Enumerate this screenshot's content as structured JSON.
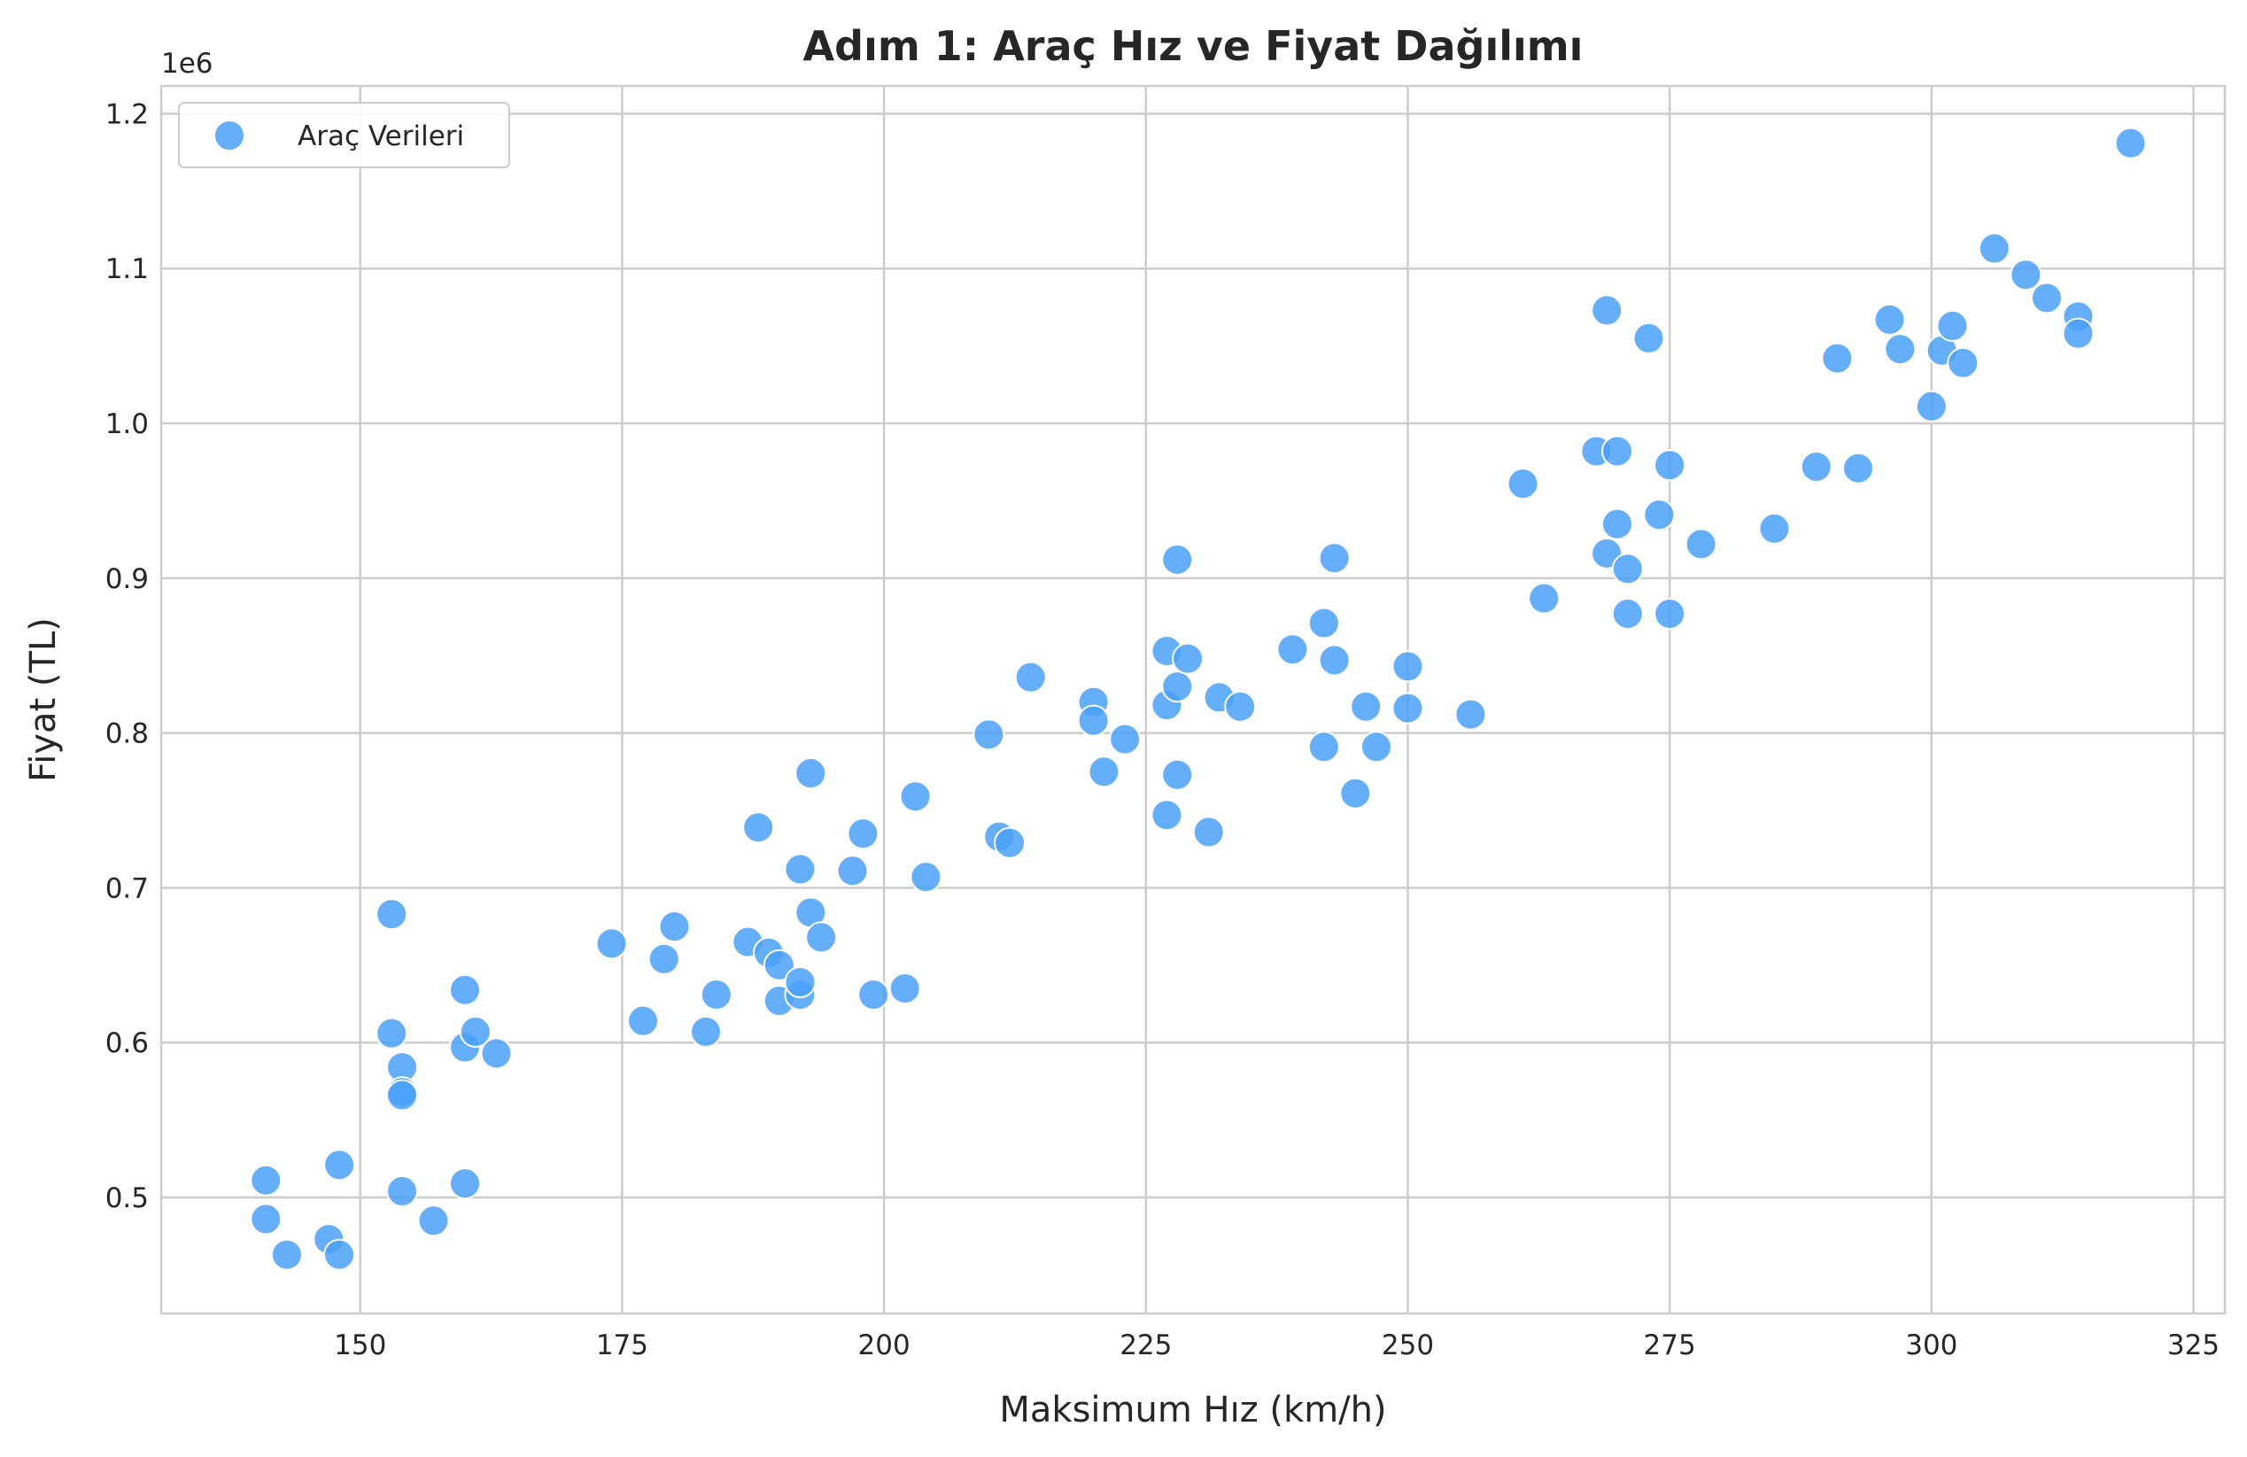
{
  "chart_data": {
    "type": "scatter",
    "title": "Adım 1: Araç Hız ve Fiyat Dağılımı",
    "xlabel": "Maksimum Hız (km/h)",
    "ylabel": "Fiyat (TL)",
    "y_offset_label": "1e6",
    "xlim": [
      131,
      328
    ],
    "ylim": [
      0.425,
      1.218
    ],
    "x_ticks": [
      150,
      175,
      200,
      225,
      250,
      275,
      300,
      325
    ],
    "y_ticks": [
      0.5,
      0.6,
      0.7,
      0.8,
      0.9,
      1.0,
      1.1,
      1.2
    ],
    "x_tick_labels": [
      "150",
      "175",
      "200",
      "225",
      "250",
      "275",
      "300",
      "325"
    ],
    "y_tick_labels": [
      "0.5",
      "0.6",
      "0.7",
      "0.8",
      "0.9",
      "1.0",
      "1.1",
      "1.2"
    ],
    "grid": true,
    "legend_position": "top-left",
    "colors": {
      "series": "#4aa0f8",
      "grid": "#cccccc",
      "text": "#262626"
    },
    "series": [
      {
        "name": "Araç Verileri",
        "points": [
          [
            141,
            0.511
          ],
          [
            141,
            0.486
          ],
          [
            143,
            0.463
          ],
          [
            147,
            0.473
          ],
          [
            148,
            0.463
          ],
          [
            148,
            0.521
          ],
          [
            153,
            0.683
          ],
          [
            153,
            0.606
          ],
          [
            154,
            0.584
          ],
          [
            154,
            0.568
          ],
          [
            154,
            0.566
          ],
          [
            154,
            0.504
          ],
          [
            157,
            0.485
          ],
          [
            160,
            0.634
          ],
          [
            160,
            0.597
          ],
          [
            160,
            0.509
          ],
          [
            161,
            0.607
          ],
          [
            163,
            0.593
          ],
          [
            174,
            0.664
          ],
          [
            177,
            0.614
          ],
          [
            179,
            0.654
          ],
          [
            180,
            0.675
          ],
          [
            183,
            0.607
          ],
          [
            184,
            0.631
          ],
          [
            187,
            0.665
          ],
          [
            188,
            0.739
          ],
          [
            189,
            0.658
          ],
          [
            190,
            0.65
          ],
          [
            190,
            0.627
          ],
          [
            192,
            0.712
          ],
          [
            192,
            0.631
          ],
          [
            192,
            0.639
          ],
          [
            193,
            0.774
          ],
          [
            193,
            0.684
          ],
          [
            194,
            0.668
          ],
          [
            197,
            0.711
          ],
          [
            198,
            0.735
          ],
          [
            199,
            0.631
          ],
          [
            202,
            0.635
          ],
          [
            203,
            0.759
          ],
          [
            204,
            0.707
          ],
          [
            210,
            0.799
          ],
          [
            211,
            0.733
          ],
          [
            212,
            0.729
          ],
          [
            214,
            0.836
          ],
          [
            220,
            0.82
          ],
          [
            220,
            0.808
          ],
          [
            221,
            0.775
          ],
          [
            223,
            0.796
          ],
          [
            227,
            0.853
          ],
          [
            227,
            0.818
          ],
          [
            227,
            0.747
          ],
          [
            228,
            0.912
          ],
          [
            228,
            0.83
          ],
          [
            228,
            0.773
          ],
          [
            229,
            0.848
          ],
          [
            231,
            0.736
          ],
          [
            232,
            0.823
          ],
          [
            234,
            0.817
          ],
          [
            239,
            0.854
          ],
          [
            242,
            0.871
          ],
          [
            242,
            0.791
          ],
          [
            243,
            0.913
          ],
          [
            243,
            0.847
          ],
          [
            245,
            0.761
          ],
          [
            246,
            0.817
          ],
          [
            247,
            0.791
          ],
          [
            250,
            0.843
          ],
          [
            250,
            0.816
          ],
          [
            256,
            0.812
          ],
          [
            261,
            0.961
          ],
          [
            263,
            0.887
          ],
          [
            268,
            0.982
          ],
          [
            269,
            1.073
          ],
          [
            269,
            0.916
          ],
          [
            270,
            0.982
          ],
          [
            270,
            0.935
          ],
          [
            271,
            0.906
          ],
          [
            271,
            0.877
          ],
          [
            273,
            1.055
          ],
          [
            274,
            0.941
          ],
          [
            275,
            0.973
          ],
          [
            275,
            0.877
          ],
          [
            278,
            0.922
          ],
          [
            285,
            0.932
          ],
          [
            289,
            0.972
          ],
          [
            291,
            1.042
          ],
          [
            293,
            0.971
          ],
          [
            296,
            1.067
          ],
          [
            297,
            1.048
          ],
          [
            300,
            1.011
          ],
          [
            301,
            1.047
          ],
          [
            302,
            1.063
          ],
          [
            303,
            1.039
          ],
          [
            306,
            1.113
          ],
          [
            309,
            1.096
          ],
          [
            311,
            1.081
          ],
          [
            314,
            1.069
          ],
          [
            314,
            1.058
          ],
          [
            319,
            1.181
          ]
        ]
      }
    ]
  }
}
